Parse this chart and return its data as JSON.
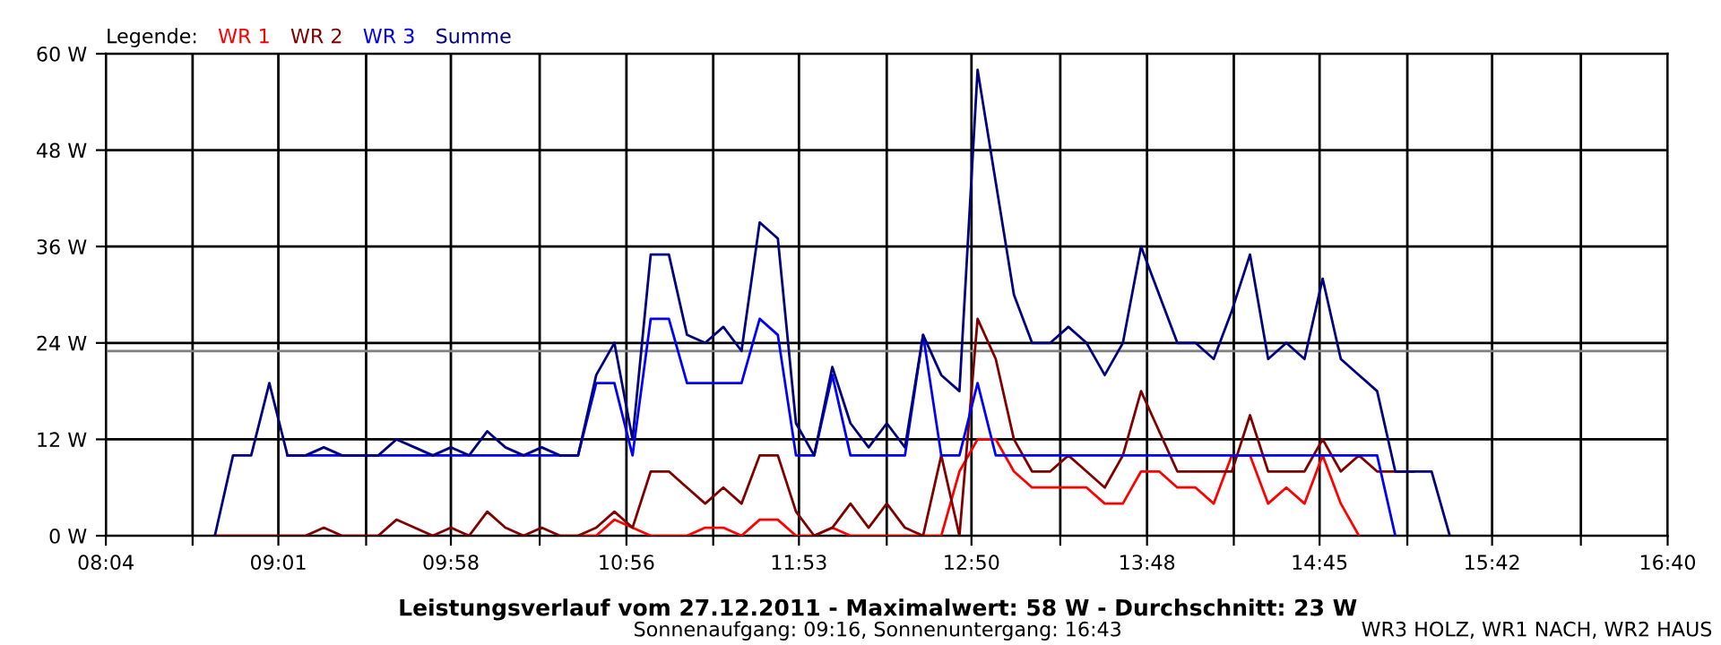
{
  "chart_data": {
    "type": "line",
    "title": "Leistungsverlauf vom 27.12.2011 - Maximalwert: 58 W - Durchschnitt: 23 W",
    "subtitle": "Sonnenaufgang: 09:16, Sonnenuntergang: 16:43",
    "legend_title": "Legende:",
    "legend": "top left",
    "grid": true,
    "annotations": [
      "WR3 HOLZ, WR1 NACH, WR2 HAUS"
    ],
    "x": [
      8.667,
      8.767,
      8.867,
      8.967,
      9.067,
      9.167,
      9.267,
      9.367,
      9.467,
      9.567,
      9.667,
      9.767,
      9.867,
      9.967,
      10.067,
      10.167,
      10.267,
      10.367,
      10.467,
      10.567,
      10.667,
      10.767,
      10.867,
      10.967,
      11.067,
      11.167,
      11.267,
      11.367,
      11.467,
      11.567,
      11.667,
      11.767,
      11.867,
      11.967,
      12.067,
      12.167,
      12.267,
      12.367,
      12.467,
      12.567,
      12.667,
      12.767,
      12.867,
      12.967,
      13.067,
      13.167,
      13.267,
      13.367,
      13.467,
      13.567,
      13.667,
      13.767,
      13.867,
      13.967,
      14.067,
      14.167,
      14.267,
      14.367,
      14.467,
      14.567,
      14.667,
      14.767,
      14.867,
      14.967,
      15.067,
      15.167,
      15.267,
      15.367,
      15.467
    ],
    "xlim": [
      8.0667,
      16.6667
    ],
    "xticks": [
      {
        "value": 8.0667,
        "label": "08:04"
      },
      {
        "value": 8.5444,
        "label": null
      },
      {
        "value": 9.0167,
        "label": "09:01"
      },
      {
        "value": 9.5,
        "label": null
      },
      {
        "value": 9.9667,
        "label": "09:58"
      },
      {
        "value": 10.4556,
        "label": null
      },
      {
        "value": 10.9333,
        "label": "10:56"
      },
      {
        "value": 11.4111,
        "label": null
      },
      {
        "value": 11.8833,
        "label": "11:53"
      },
      {
        "value": 12.3667,
        "label": null
      },
      {
        "value": 12.8333,
        "label": "12:50"
      },
      {
        "value": 13.3222,
        "label": null
      },
      {
        "value": 13.8,
        "label": "13:48"
      },
      {
        "value": 14.2778,
        "label": null
      },
      {
        "value": 14.75,
        "label": "14:45"
      },
      {
        "value": 15.2333,
        "label": null
      },
      {
        "value": 15.7,
        "label": "15:42"
      },
      {
        "value": 16.1889,
        "label": null
      },
      {
        "value": 16.6667,
        "label": "16:40"
      }
    ],
    "ylim": [
      0,
      60
    ],
    "yticks": [
      {
        "value": 0,
        "label": "0 W"
      },
      {
        "value": 12,
        "label": "12 W"
      },
      {
        "value": 24,
        "label": "24 W"
      },
      {
        "value": 36,
        "label": "36 W"
      },
      {
        "value": 48,
        "label": "48 W"
      },
      {
        "value": 60,
        "label": "60 W"
      }
    ],
    "ref_lines": [
      {
        "axis": "y",
        "value": 23,
        "color": "#808080"
      }
    ],
    "series": [
      {
        "name": "WR 1",
        "color": "#ff0000",
        "x": [
          10.667,
          10.767,
          10.867,
          10.967,
          11.067,
          11.167,
          11.267,
          11.367,
          11.467,
          11.567,
          11.667,
          11.767,
          11.867,
          11.967,
          12.067,
          12.167,
          12.267,
          12.367,
          12.467,
          12.567,
          12.667,
          12.767,
          12.867,
          12.967,
          13.067,
          13.167,
          13.267,
          13.367,
          13.467,
          13.567,
          13.667,
          13.767,
          13.867,
          13.967,
          14.067,
          14.167,
          14.267,
          14.367,
          14.467,
          14.567,
          14.667,
          14.767,
          14.867,
          14.967
        ],
        "values": [
          0,
          0,
          2,
          1,
          0,
          0,
          0,
          1,
          1,
          0,
          2,
          2,
          0,
          0,
          1,
          0,
          0,
          0,
          0,
          0,
          0,
          8,
          12,
          12,
          8,
          6,
          6,
          6,
          6,
          4,
          4,
          8,
          8,
          6,
          6,
          4,
          10,
          10,
          4,
          6,
          4,
          10,
          4,
          0
        ]
      },
      {
        "name": "WR 2",
        "color": "#800000",
        "values": [
          0,
          0,
          0,
          0,
          0,
          0,
          1,
          0,
          0,
          0,
          2,
          1,
          0,
          1,
          0,
          3,
          1,
          0,
          1,
          0,
          0,
          1,
          3,
          1,
          8,
          8,
          6,
          4,
          6,
          4,
          10,
          10,
          3,
          0,
          1,
          4,
          1,
          4,
          1,
          0,
          10,
          0,
          27,
          22,
          12,
          8,
          8,
          10,
          8,
          6,
          10,
          18,
          13,
          8,
          8,
          8,
          8,
          15,
          8,
          8,
          8,
          12,
          8,
          10,
          8,
          8,
          8,
          null,
          null
        ]
      },
      {
        "name": "WR 3",
        "color": "#0000ff",
        "x": [
          9.067,
          9.167,
          9.267,
          9.367,
          9.467,
          9.567,
          9.667,
          9.767,
          9.867,
          9.967,
          10.067,
          10.167,
          10.267,
          10.367,
          10.467,
          10.567,
          10.667,
          10.767,
          10.867,
          10.967,
          11.067,
          11.167,
          11.267,
          11.367,
          11.467,
          11.567,
          11.667,
          11.767,
          11.867,
          11.967,
          12.067,
          12.167,
          12.267,
          12.367,
          12.467,
          12.567,
          12.667,
          12.767,
          12.867,
          12.967,
          13.067,
          13.167,
          13.267,
          13.367,
          13.467,
          13.567,
          13.667,
          13.767,
          13.867,
          13.967,
          14.067,
          14.167,
          14.267,
          14.367,
          14.467,
          14.567,
          14.667,
          14.767,
          14.867,
          14.967,
          15.067,
          15.167
        ],
        "values": [
          10,
          10,
          10,
          10,
          10,
          10,
          10,
          10,
          10,
          10,
          10,
          10,
          10,
          10,
          10,
          10,
          10,
          19,
          19,
          10,
          27,
          27,
          19,
          19,
          19,
          19,
          27,
          25,
          10,
          10,
          20,
          10,
          10,
          10,
          10,
          25,
          10,
          10,
          19,
          10,
          10,
          10,
          10,
          10,
          10,
          10,
          10,
          10,
          10,
          10,
          10,
          10,
          10,
          10,
          10,
          10,
          10,
          10,
          10,
          10,
          10,
          0
        ]
      },
      {
        "name": "Summe",
        "color": "#000080",
        "values": [
          0,
          10,
          10,
          19,
          10,
          10,
          11,
          10,
          10,
          10,
          12,
          11,
          10,
          11,
          10,
          13,
          11,
          10,
          11,
          10,
          10,
          20,
          24,
          12,
          35,
          35,
          25,
          24,
          26,
          23,
          39,
          37,
          14,
          10,
          21,
          14,
          11,
          14,
          11,
          25,
          20,
          18,
          58,
          44,
          30,
          24,
          24,
          26,
          24,
          20,
          24,
          36,
          30,
          24,
          24,
          22,
          28,
          35,
          22,
          24,
          22,
          32,
          22,
          20,
          18,
          8,
          8,
          8,
          0
        ]
      }
    ]
  }
}
